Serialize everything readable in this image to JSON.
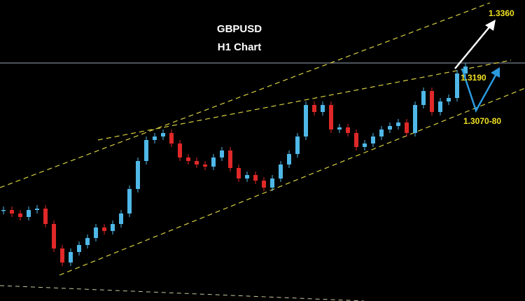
{
  "chart_data": {
    "type": "candlestick",
    "title": "GBPUSD",
    "subtitle": "H1 Chart",
    "annotations": [
      "1.3360",
      "1.3190",
      "1.3070-80"
    ],
    "ylim": [
      1.282,
      1.325
    ],
    "up_color": "#4fb8e8",
    "down_color": "#e02828",
    "values": [
      1.295,
      1.2945,
      1.294,
      1.295,
      1.2952,
      1.293,
      1.2895,
      1.2875,
      1.289,
      1.29,
      1.291,
      1.2925,
      1.292,
      1.293,
      1.2945,
      1.298,
      1.302,
      1.305,
      1.3055,
      1.306,
      1.3045,
      1.3025,
      1.302,
      1.3015,
      1.3012,
      1.3025,
      1.3035,
      1.301,
      1.2995,
      1.3,
      1.2992,
      1.2982,
      1.2995,
      1.3015,
      1.303,
      1.3055,
      1.31,
      1.309,
      1.31,
      1.3065,
      1.3068,
      1.306,
      1.304,
      1.3045,
      1.3055,
      1.3065,
      1.307,
      1.3075,
      1.306,
      1.31,
      1.312,
      1.309,
      1.3105,
      1.311,
      1.3145,
      1.3155
    ]
  }
}
